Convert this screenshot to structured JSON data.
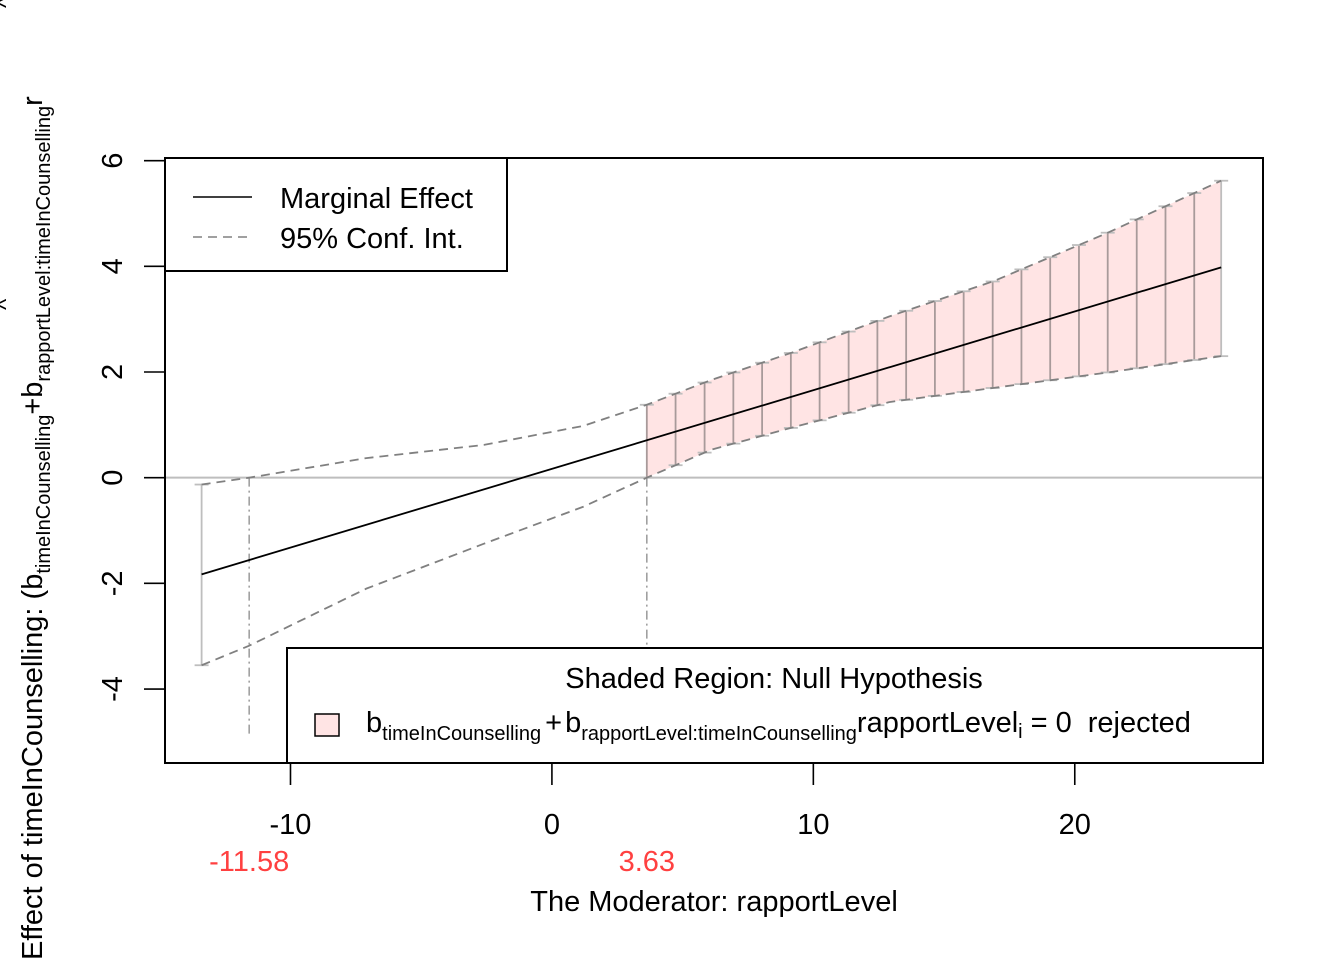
{
  "chart_data": {
    "type": "line",
    "xlabel": "The Moderator:  rapportLevel",
    "ylabel": {
      "prefix": "Effect of  timeInCounselling:   (",
      "b1": "b",
      "b1_sub": "timeInCounselling",
      "plus": "+",
      "b2": "b",
      "b2_sub": "rapportLevel:timeInCounselling",
      "tail": "r"
    },
    "xlim": [
      -14.8,
      27.2
    ],
    "ylim": [
      -5.4,
      6.05
    ],
    "x_ticks": [
      -10,
      0,
      10,
      20
    ],
    "x_tick_labels": [
      "-10",
      "0",
      "10",
      "20"
    ],
    "y_ticks": [
      -4,
      -2,
      0,
      2,
      4,
      6
    ],
    "y_tick_labels": [
      "-4",
      "-2",
      "0",
      "2",
      "4",
      "6"
    ],
    "critical_values": [
      {
        "value": -11.58,
        "label": "-11.58"
      },
      {
        "value": 3.63,
        "label": "3.63"
      }
    ],
    "series": [
      {
        "name": "Marginal Effect",
        "line": "solid",
        "x": [
          -13.4,
          25.6
        ],
        "y": [
          -1.83,
          3.98
        ]
      },
      {
        "name": "95% Conf. Int.",
        "line": "dashed",
        "x": [
          -13.4,
          -11.58,
          -7.1,
          -2.6,
          1.2,
          3.63,
          6.1,
          9.2,
          12.9,
          16.9,
          21.1,
          25.6
        ],
        "upper": [
          -0.13,
          0.0,
          0.37,
          0.62,
          0.98,
          1.38,
          1.85,
          2.37,
          3.05,
          3.72,
          4.6,
          5.62
        ],
        "lower": [
          -3.55,
          -3.18,
          -2.1,
          -1.25,
          -0.55,
          0.0,
          0.53,
          0.95,
          1.43,
          1.7,
          1.98,
          2.3
        ]
      }
    ],
    "error_bar_x": [
      -13.4,
      3.63,
      4.73,
      5.84,
      6.94,
      8.04,
      9.14,
      10.24,
      11.35,
      12.45,
      13.55,
      14.65,
      15.75,
      16.86,
      17.96,
      19.06,
      20.16,
      21.26,
      22.37,
      23.47,
      24.57,
      25.6
    ],
    "shaded_region": {
      "from": 3.63,
      "to": 25.6,
      "color": "#ffe4e4"
    },
    "legend": {
      "position": "top-left",
      "items": [
        {
          "label": "Marginal Effect",
          "line": "solid"
        },
        {
          "label": "95% Conf. Int.",
          "line": "dashed"
        }
      ]
    },
    "legend2": {
      "position": "bottom-right",
      "title": "Shaded Region: Null Hypothesis",
      "b1": "b",
      "b1_sub": "timeInCounselling",
      "plus": "+",
      "b2": "b",
      "b2_sub": "rapportLevel:timeInCounselling",
      "term": "rapportLevel",
      "term_sub": "i",
      "eq": "= 0",
      "rejected": "rejected"
    },
    "colors": {
      "marginal": "#000000",
      "ci": "#808080",
      "errorbar": "#bebebe",
      "zero_line": "#bebebe",
      "shade": "#ffe4e4",
      "critical_label": "#ff4040"
    }
  }
}
